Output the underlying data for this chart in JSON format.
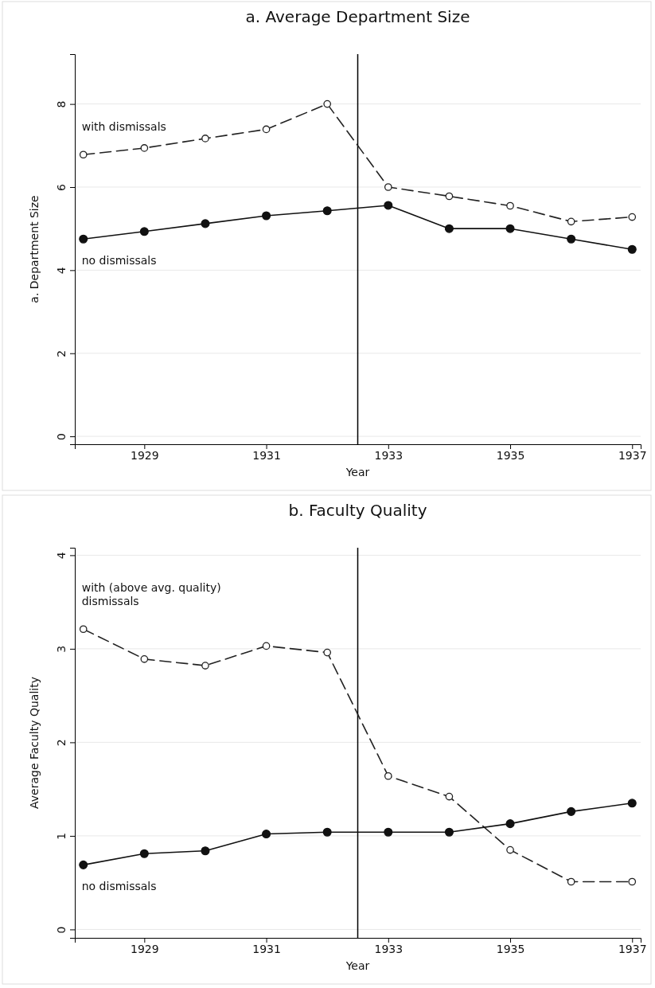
{
  "chart_data": [
    {
      "type": "line",
      "title": "a. Average Department Size",
      "xlabel": "Year",
      "ylabel": "a. Department Size",
      "x": [
        1928,
        1929,
        1930,
        1931,
        1932,
        1933,
        1934,
        1935,
        1936,
        1937
      ],
      "series": [
        {
          "name": "with dismissals",
          "color": "#222222",
          "line_style": "dashed",
          "values": [
            6.78,
            6.94,
            7.17,
            7.39,
            8.0,
            6.0,
            5.78,
            5.55,
            5.17,
            5.28
          ]
        },
        {
          "name": "no dismissals",
          "color": "#111111",
          "line_style": "solid",
          "values": [
            4.75,
            4.93,
            5.12,
            5.31,
            5.43,
            5.56,
            5.0,
            5.0,
            4.75,
            4.5
          ]
        }
      ],
      "xlim": [
        1927.86,
        1937.14
      ],
      "xticks": [
        1929,
        1931,
        1933,
        1935,
        1937
      ],
      "ylim": [
        -0.19,
        9.2
      ],
      "yticks": [
        0,
        2,
        4,
        6,
        8
      ],
      "ref_lines": [
        {
          "axis": "x",
          "value": 1932.5,
          "color": "#000000"
        }
      ],
      "grid": "y",
      "legend": false,
      "marker": "circle"
    },
    {
      "type": "line",
      "title": "b. Faculty Quality",
      "xlabel": "Year",
      "ylabel": "Average Faculty Quality",
      "x": [
        1928,
        1929,
        1930,
        1931,
        1932,
        1933,
        1934,
        1935,
        1936,
        1937
      ],
      "series": [
        {
          "name": "with (above avg. quality) dismissals",
          "color": "#222222",
          "line_style": "dashed",
          "values": [
            3.21,
            2.89,
            2.82,
            3.03,
            2.96,
            1.64,
            1.42,
            0.85,
            0.51,
            0.51
          ]
        },
        {
          "name": "no dismissals",
          "color": "#111111",
          "line_style": "solid",
          "values": [
            0.69,
            0.81,
            0.84,
            1.02,
            1.04,
            1.04,
            1.04,
            1.13,
            1.26,
            1.35
          ]
        }
      ],
      "xlim": [
        1927.86,
        1937.14
      ],
      "xticks": [
        1929,
        1931,
        1933,
        1935,
        1937
      ],
      "ylim": [
        -0.09,
        4.08
      ],
      "yticks": [
        0,
        1,
        2,
        3,
        4
      ],
      "ref_lines": [
        {
          "axis": "x",
          "value": 1932.5,
          "color": "#000000"
        }
      ],
      "grid": "y",
      "legend": false,
      "marker": "circle"
    }
  ]
}
